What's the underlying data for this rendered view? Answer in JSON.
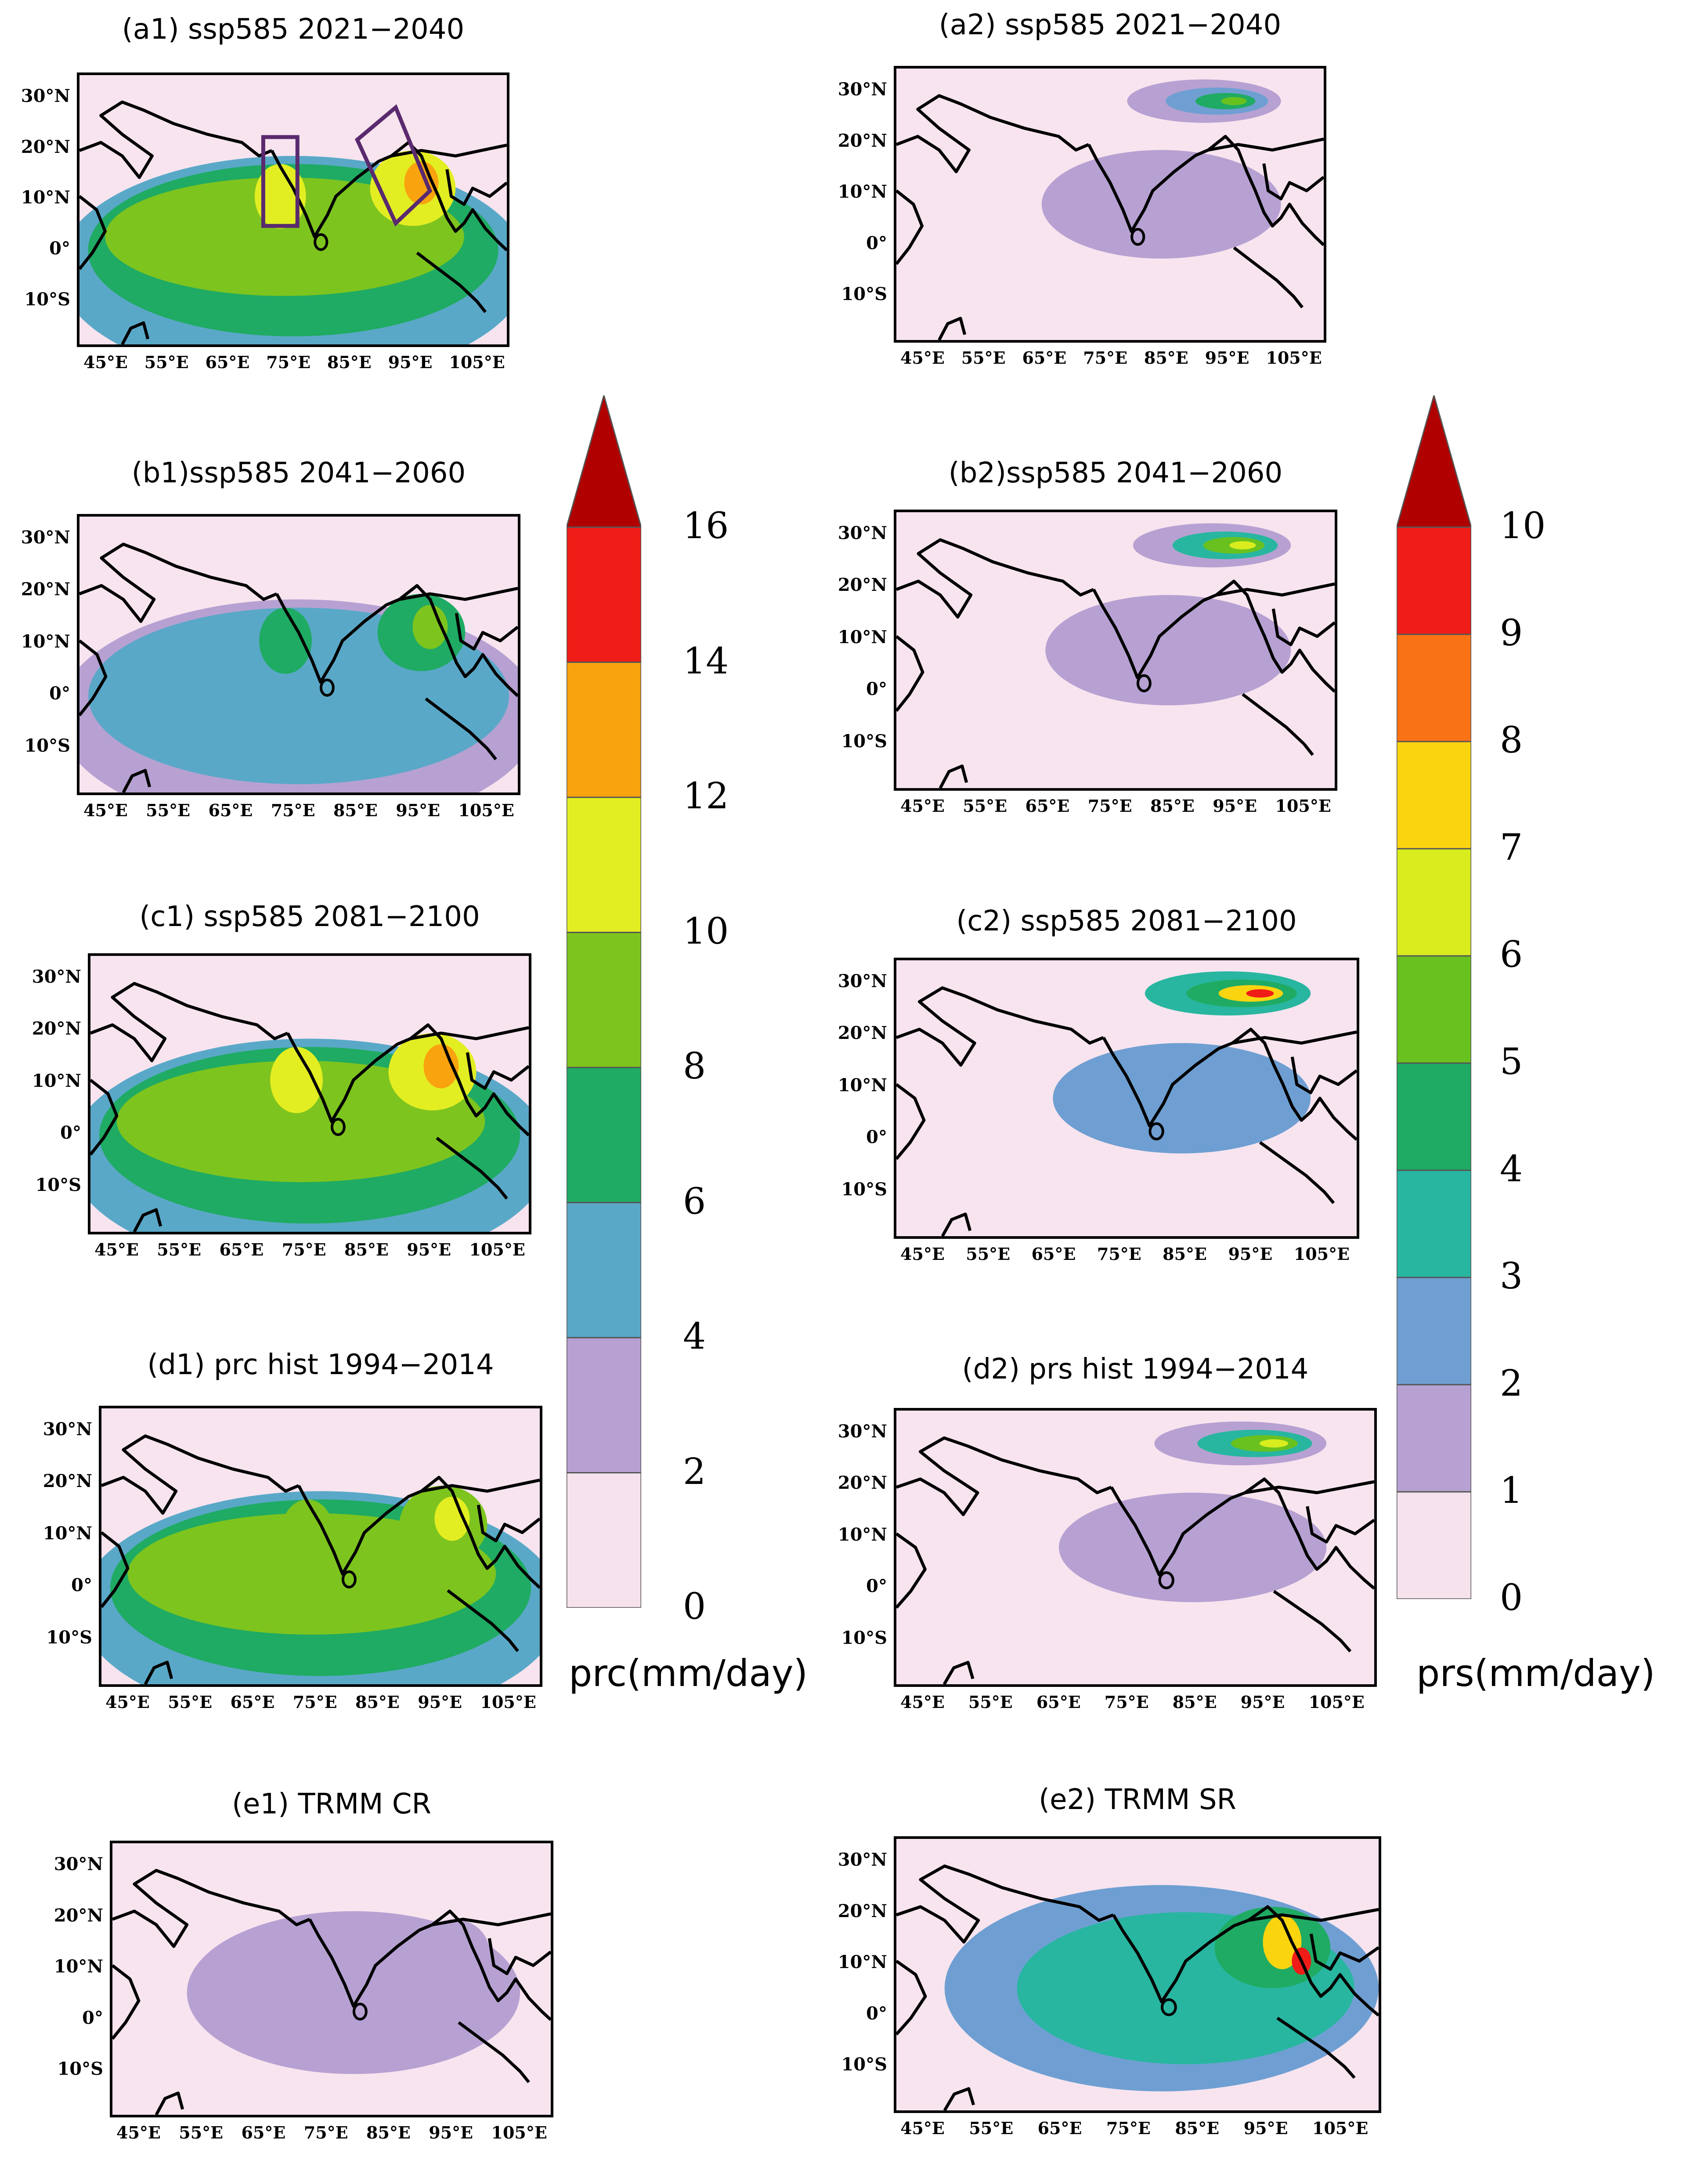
{
  "panels": [
    {
      "id": "a1",
      "title": "(a1) ssp585 2021−2040",
      "field": "prc",
      "intensity": 0.9,
      "boxes": true
    },
    {
      "id": "a2",
      "title": "(a2) ssp585 2021−2040",
      "field": "prs",
      "intensity": 0.55
    },
    {
      "id": "b1",
      "title": "(b1)ssp585 2041−2060",
      "field": "prc",
      "intensity": 0.8
    },
    {
      "id": "b2",
      "title": "(b2)ssp585 2041−2060",
      "field": "prs",
      "intensity": 0.65
    },
    {
      "id": "c1",
      "title": "(c1) ssp585 2081−2100",
      "field": "prc",
      "intensity": 0.95
    },
    {
      "id": "c2",
      "title": "(c2) ssp585 2081−2100",
      "field": "prs",
      "intensity": 0.85
    },
    {
      "id": "d1",
      "title": "(d1) prc hist 1994−2014",
      "field": "prc",
      "intensity": 0.85
    },
    {
      "id": "d2",
      "title": "(d2) prs hist 1994−2014",
      "field": "prs",
      "intensity": 0.7
    },
    {
      "id": "e1",
      "title": "(e1) TRMM CR",
      "field": "trmm_cr",
      "intensity": 0.5
    },
    {
      "id": "e2",
      "title": "(e2) TRMM SR",
      "field": "trmm_sr",
      "intensity": 0.9
    }
  ],
  "axes": {
    "lat_labels": [
      "30°N",
      "20°N",
      "10°N",
      "0°",
      "10°S"
    ],
    "lon_labels": [
      "45°E",
      "55°E",
      "65°E",
      "75°E",
      "85°E",
      "95°E",
      "105°E"
    ]
  },
  "colorbar_prc": {
    "unit": "prc(mm/day)",
    "ticks": [
      "16",
      "14",
      "12",
      "10",
      "8",
      "6",
      "4",
      "2",
      "0"
    ],
    "colors": [
      "#f5e2ec",
      "#b7a1d2",
      "#5aa8c8",
      "#1fab63",
      "#7ec41e",
      "#e3ee22",
      "#f9a30f",
      "#ef1c18",
      "#b00000"
    ]
  },
  "colorbar_prs": {
    "unit": "prs(mm/day)",
    "ticks": [
      "10",
      "9",
      "8",
      "7",
      "6",
      "5",
      "4",
      "3",
      "2",
      "1",
      "0"
    ],
    "colors": [
      "#f5e2ec",
      "#b7a1d2",
      "#6f9fd2",
      "#28b6a0",
      "#1fab63",
      "#69c11f",
      "#d8ec1e",
      "#fbd410",
      "#fa7216",
      "#ef1c18",
      "#b00000"
    ]
  }
}
